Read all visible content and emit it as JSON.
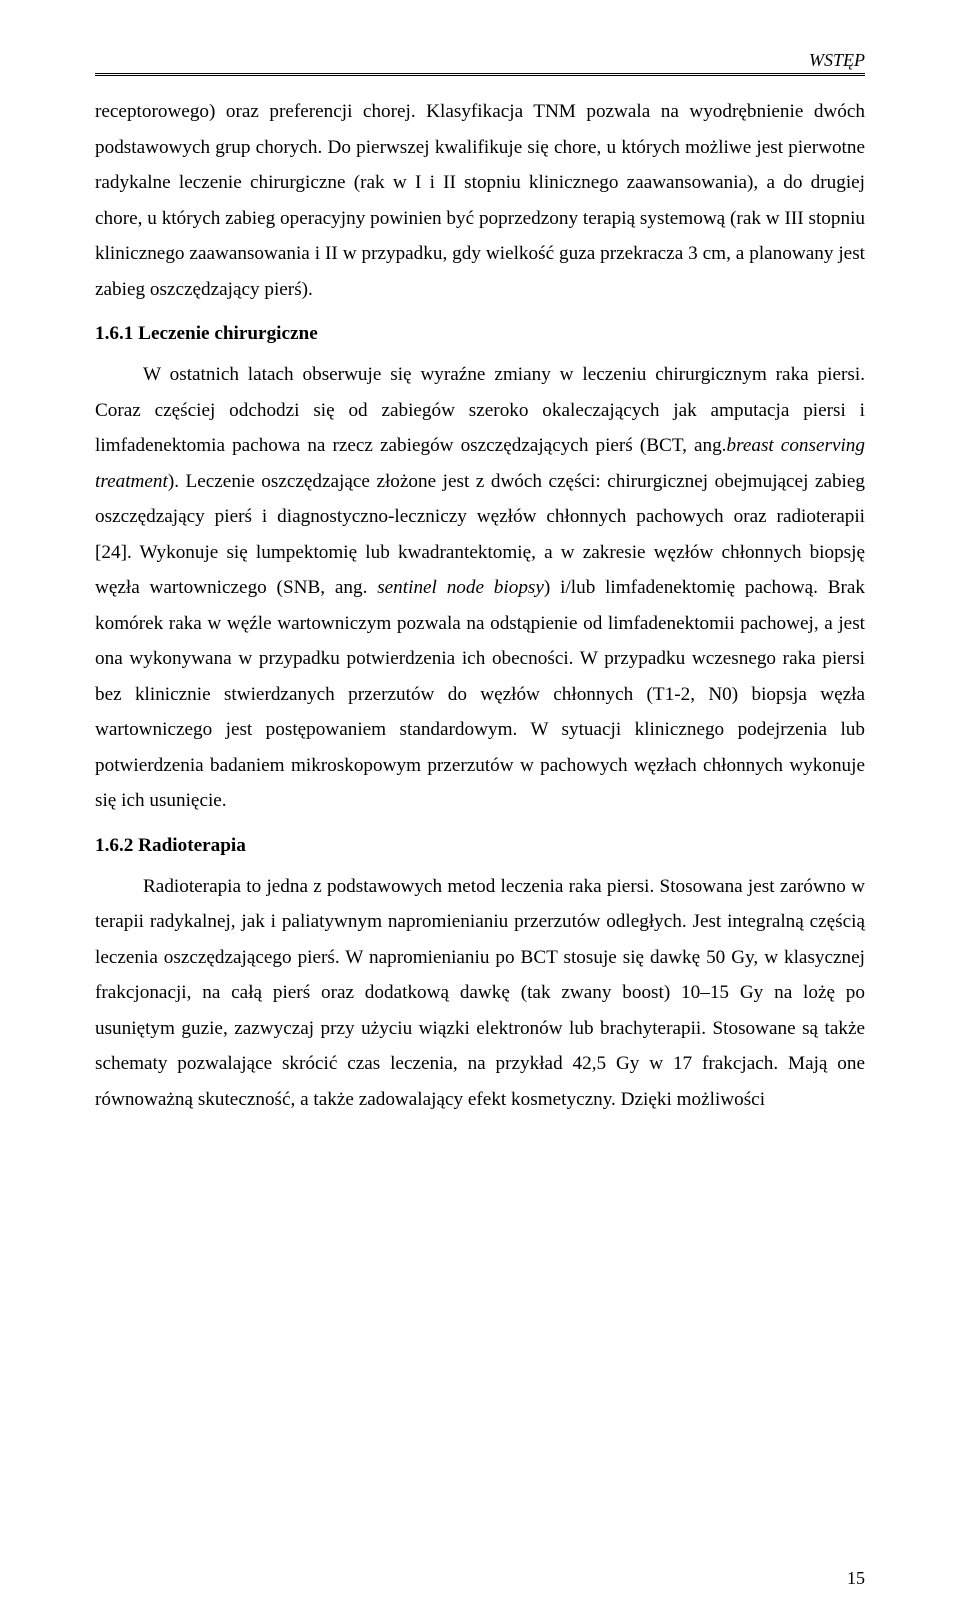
{
  "header": {
    "label": "WSTĘP"
  },
  "para1": "receptorowego) oraz preferencji chorej. Klasyfikacja TNM pozwala na wyodrębnienie dwóch podstawowych grup chorych. Do pierwszej kwalifikuje się chore, u których możliwe jest pierwotne radykalne leczenie chirurgiczne (rak w I i II stopniu klinicznego zaawansowania), a do drugiej chore, u których zabieg operacyjny powinien być poprzedzony terapią systemową (rak w III stopniu klinicznego zaawansowania i II w przypadku, gdy wielkość guza przekracza 3 cm, a planowany jest zabieg oszczędzający pierś).",
  "heading1": "1.6.1 Leczenie chirurgiczne",
  "para2_pre": "W ostatnich latach obserwuje się wyraźne zmiany w leczeniu chirurgicznym raka piersi. Coraz częściej odchodzi się od zabiegów szeroko okaleczających jak amputacja piersi i limfadenektomia pachowa na rzecz zabiegów oszczędzających pierś (BCT, ang.",
  "para2_it1": "breast conserving treatment",
  "para2_mid": "). Leczenie oszczędzające złożone jest z dwóch części: chirurgicznej obejmującej zabieg oszczędzający pierś i diagnostyczno-leczniczy węzłów chłonnych pachowych oraz radioterapii [24]. Wykonuje się lumpektomię lub kwadrantektomię, a w zakresie węzłów chłonnych biopsję węzła wartowniczego (SNB, ang. ",
  "para2_it2": "sentinel node biopsy",
  "para2_post": ") i/lub limfadenektomię pachową. Brak komórek raka w węźle wartowniczym pozwala na odstąpienie od limfadenektomii pachowej, a jest ona wykonywana w przypadku potwierdzenia ich obecności. W przypadku wczesnego raka piersi bez klinicznie stwierdzanych przerzutów do węzłów chłonnych (T1-2, N0) biopsja węzła wartowniczego jest postępowaniem standardowym. W sytuacji klinicznego podejrzenia lub potwierdzenia badaniem mikroskopowym przerzutów w pachowych węzłach chłonnych wykonuje się ich usunięcie.",
  "heading2": "1.6.2 Radioterapia",
  "para3": "Radioterapia to jedna z podstawowych metod leczenia raka piersi. Stosowana jest zarówno w terapii radykalnej, jak i paliatywnym napromienianiu przerzutów odległych. Jest integralną częścią leczenia oszczędzającego pierś. W napromienianiu po BCT stosuje się dawkę 50 Gy, w klasycznej frakcjonacji, na całą pierś oraz dodatkową dawkę (tak zwany boost) 10–15 Gy na lożę po usuniętym guzie, zazwyczaj przy użyciu wiązki elektronów  lub brachyterapii. Stosowane są także schematy pozwalające skrócić czas leczenia, na przykład 42,5 Gy w 17 frakcjach. Mają one równoważną skuteczność, a także zadowalający efekt kosmetyczny. Dzięki możliwości",
  "pageNumber": "15"
}
